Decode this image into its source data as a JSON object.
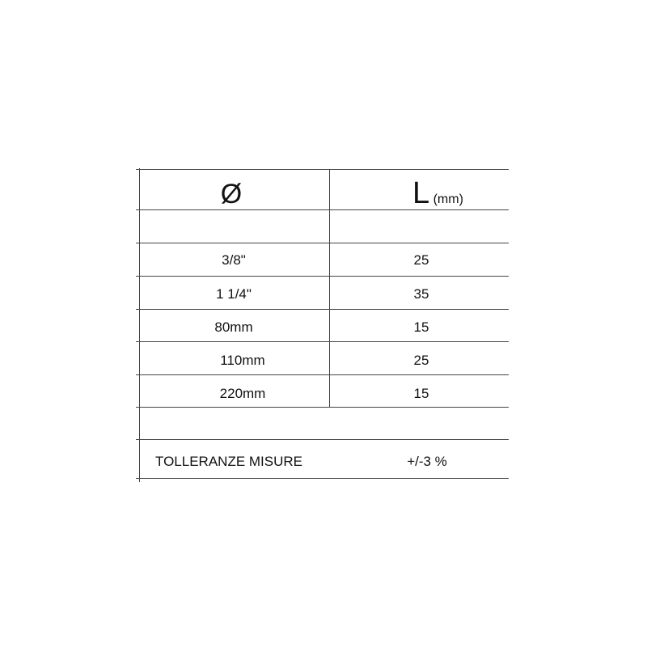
{
  "header": {
    "diameter_symbol": "Ø",
    "length_symbol": "L",
    "length_unit": "(mm)"
  },
  "rows": [
    {
      "diameter": "3/8\"",
      "length": "25"
    },
    {
      "diameter": "1 1/4\"",
      "length": "35"
    },
    {
      "diameter": "80mm",
      "length": "15"
    },
    {
      "diameter": "110mm",
      "length": "25"
    },
    {
      "diameter": "220mm",
      "length": "15"
    }
  ],
  "tolerance": {
    "label": "TOLLERANZE MISURE",
    "value": "+/-3 %"
  }
}
